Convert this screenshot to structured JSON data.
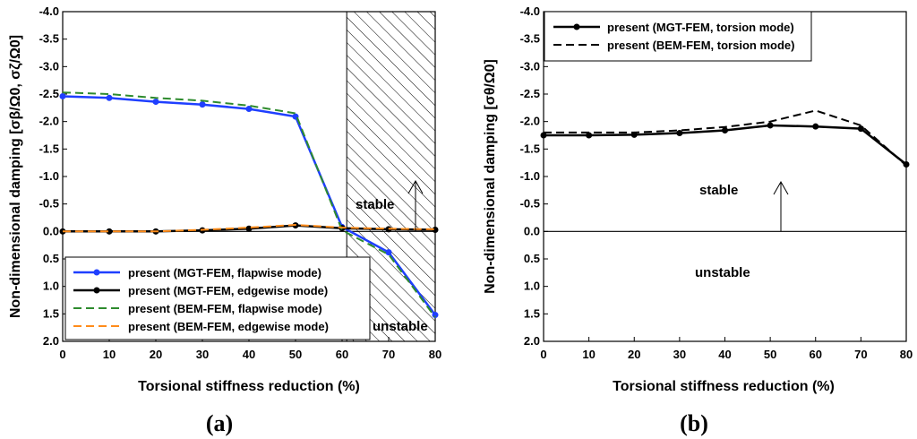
{
  "chart_data": [
    {
      "id": "a",
      "type": "line",
      "caption": "(a)",
      "xlabel": "Torsional stiffness reduction (%)",
      "ylabel": "Non-dimensional damping [σβ/Ω0, σζ/Ω0]",
      "xlim": [
        0,
        80
      ],
      "ylim": [
        2.0,
        -4.0
      ],
      "xticks": [
        0,
        10,
        20,
        30,
        40,
        50,
        60,
        70,
        80
      ],
      "yticks": [
        "-4.0",
        "-3.5",
        "-3.0",
        "-2.5",
        "-2.0",
        "-1.5",
        "-1.0",
        "-0.5",
        "0.0",
        "0.5",
        "1.0",
        "1.5",
        "2.0"
      ],
      "shaded_region": {
        "x_from": 61,
        "x_to": 80,
        "pattern": "hatch"
      },
      "annotations": [
        "stable",
        "unstable"
      ],
      "legend_position": "lower-left",
      "series": [
        {
          "name": "present (MGT-FEM, flapwise mode)",
          "color": "#1f3fff",
          "dash": "solid",
          "marker": "dot",
          "x": [
            0,
            10,
            20,
            30,
            40,
            50,
            60,
            70,
            80
          ],
          "y": [
            -2.46,
            -2.43,
            -2.36,
            -2.31,
            -2.23,
            -2.09,
            -0.08,
            0.38,
            1.52
          ]
        },
        {
          "name": "present (MGT-FEM, edgewise mode)",
          "color": "#000000",
          "dash": "solid",
          "marker": "dot",
          "x": [
            0,
            10,
            20,
            30,
            40,
            50,
            60,
            70,
            80
          ],
          "y": [
            0.0,
            0.0,
            0.0,
            -0.02,
            -0.05,
            -0.11,
            -0.06,
            -0.04,
            -0.03
          ]
        },
        {
          "name": "present (BEM-FEM, flapwise mode)",
          "color": "#2e8b2e",
          "dash": "dashed",
          "marker": "none",
          "x": [
            0,
            10,
            20,
            30,
            40,
            50,
            60,
            70,
            80
          ],
          "y": [
            -2.53,
            -2.5,
            -2.43,
            -2.38,
            -2.29,
            -2.15,
            -0.02,
            0.42,
            1.56
          ]
        },
        {
          "name": "present (BEM-FEM, edgewise mode)",
          "color": "#ff8c1a",
          "dash": "dashed",
          "marker": "none",
          "x": [
            0,
            10,
            20,
            30,
            40,
            50,
            60,
            70,
            80
          ],
          "y": [
            0.0,
            0.0,
            0.0,
            -0.03,
            -0.07,
            -0.12,
            -0.07,
            -0.05,
            -0.04
          ]
        }
      ]
    },
    {
      "id": "b",
      "type": "line",
      "caption": "(b)",
      "xlabel": "Torsional stiffness reduction (%)",
      "ylabel": "Non-dimensional damping [σθ/Ω0]",
      "xlim": [
        0,
        80
      ],
      "ylim": [
        2.0,
        -4.0
      ],
      "xticks": [
        0,
        10,
        20,
        30,
        40,
        50,
        60,
        70,
        80
      ],
      "yticks": [
        "-4.0",
        "-3.5",
        "-3.0",
        "-2.5",
        "-2.0",
        "-1.5",
        "-1.0",
        "-0.5",
        "0.0",
        "0.5",
        "1.0",
        "1.5",
        "2.0"
      ],
      "annotations": [
        "stable",
        "unstable"
      ],
      "legend_position": "top-left",
      "series": [
        {
          "name": "present (MGT-FEM, torsion mode)",
          "color": "#000000",
          "dash": "solid",
          "marker": "dot",
          "x": [
            0,
            10,
            20,
            30,
            40,
            50,
            60,
            70,
            80
          ],
          "y": [
            -1.75,
            -1.75,
            -1.76,
            -1.79,
            -1.84,
            -1.93,
            -1.91,
            -1.87,
            -1.22
          ]
        },
        {
          "name": "present (BEM-FEM, torsion mode)",
          "color": "#000000",
          "dash": "dashed",
          "marker": "none",
          "x": [
            0,
            10,
            20,
            30,
            40,
            50,
            60,
            70,
            80
          ],
          "y": [
            -1.8,
            -1.8,
            -1.8,
            -1.84,
            -1.9,
            -2.0,
            -2.2,
            -1.93,
            -1.2
          ]
        }
      ]
    }
  ]
}
